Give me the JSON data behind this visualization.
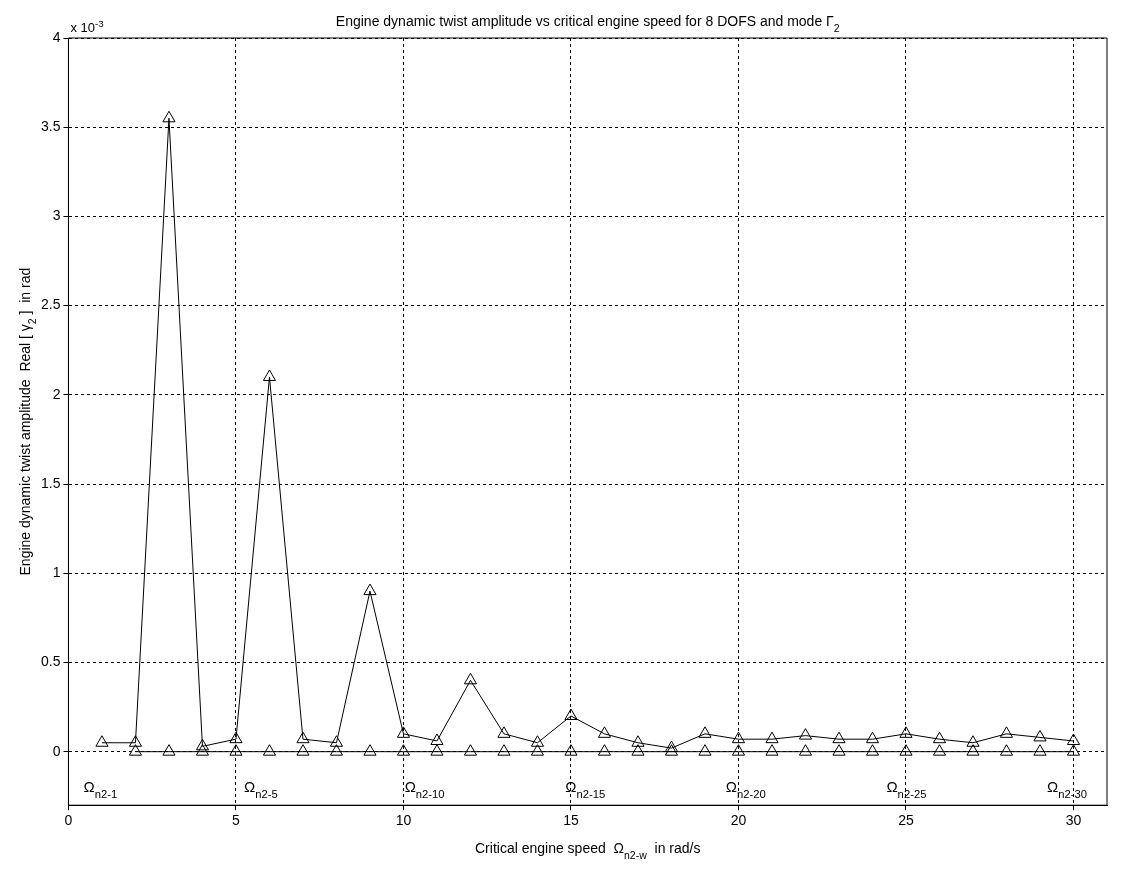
{
  "chart_data": {
    "type": "line",
    "title": "Engine dynamic twist amplitude vs critical engine speed for 8 DOFS and mode Γ$_{2}$",
    "xlabel": "Critical engine speed  Ω$_{n2-w}$  in rad/s",
    "ylabel": "Engine dynamic twist amplitude  Real [ γ$_{2}$ ]  in rad",
    "x": [
      1,
      2,
      3,
      4,
      5,
      6,
      7,
      8,
      9,
      10,
      11,
      12,
      13,
      14,
      15,
      16,
      17,
      18,
      19,
      20,
      21,
      22,
      23,
      24,
      25,
      26,
      27,
      28,
      29,
      30
    ],
    "series": [
      {
        "color": "#000000",
        "marker": "triangle",
        "values": [
          0.05,
          0.05,
          3.55,
          0.03,
          0.07,
          2.1,
          0.07,
          0.05,
          0.9,
          0.1,
          0.06,
          0.4,
          0.1,
          0.05,
          0.2,
          0.1,
          0.05,
          0.02,
          0.1,
          0.07,
          0.07,
          0.09,
          0.07,
          0.07,
          0.1,
          0.07,
          0.05,
          0.1,
          0.08,
          0.06
        ]
      },
      {
        "color": "#000000",
        "marker": "triangle",
        "x": [
          2,
          3,
          4,
          5,
          6,
          7,
          8,
          9,
          10,
          11,
          12,
          13,
          14,
          15,
          16,
          17,
          18,
          19,
          20,
          21,
          22,
          23,
          24,
          25,
          26,
          27,
          28,
          29,
          30
        ],
        "values": [
          0,
          0,
          0,
          0,
          0,
          0,
          0,
          0,
          0,
          0,
          0,
          0,
          0,
          0,
          0,
          0,
          0,
          0,
          0,
          0,
          0,
          0,
          0,
          0,
          0,
          0,
          0,
          0,
          0
        ]
      }
    ],
    "xlim": [
      0,
      31
    ],
    "xticks": [
      0,
      5,
      10,
      15,
      20,
      25,
      30
    ],
    "ylim": [
      -0.3,
      4
    ],
    "yticks": [
      0,
      0.5,
      1,
      1.5,
      2,
      2.5,
      3,
      3.5,
      4
    ],
    "grid": true,
    "line_style": "solid",
    "annotations": [
      "x 10$^{-3}$",
      "Ω$_{n2-1}$",
      "Ω$_{n2-5}$",
      "Ω$_{n2-10}$",
      "Ω$_{n2-15}$",
      "Ω$_{n2-20}$",
      "Ω$_{n2-25}$",
      "Ω$_{n2-30}$"
    ]
  }
}
